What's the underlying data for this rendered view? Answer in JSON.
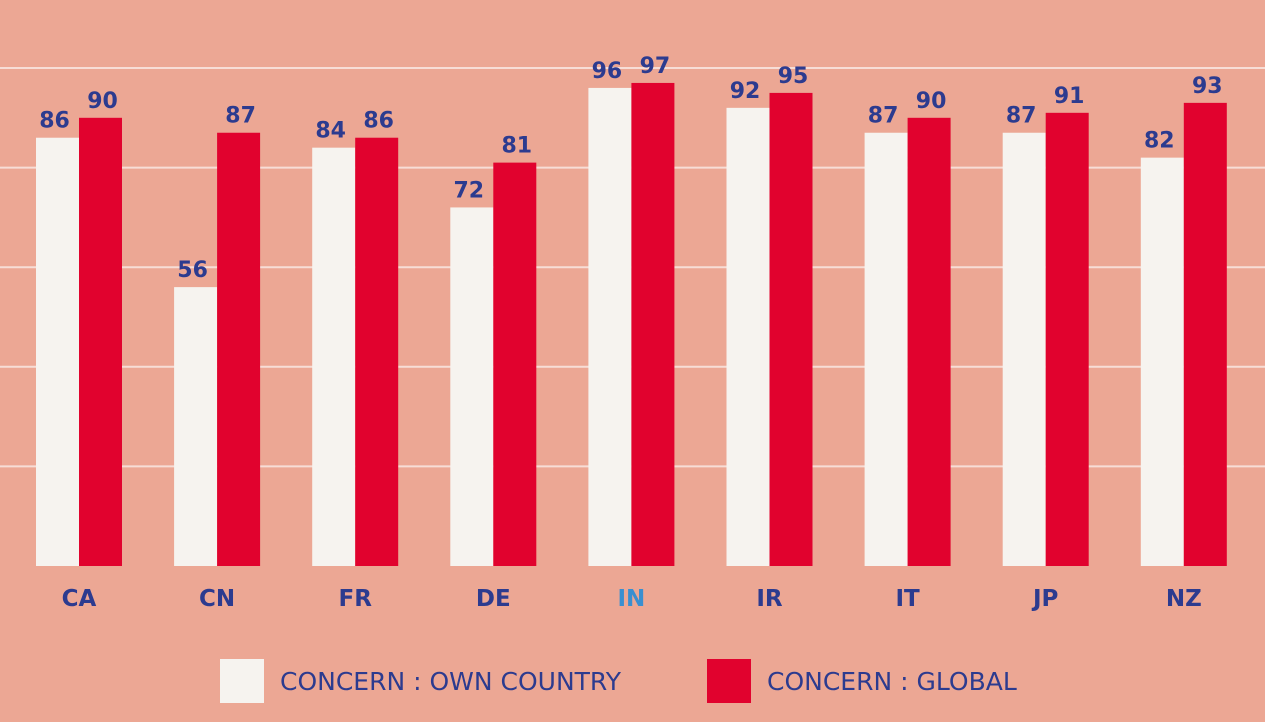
{
  "chart_data": {
    "type": "bar",
    "categories": [
      "CA",
      "CN",
      "FR",
      "DE",
      "IN",
      "IR",
      "IT",
      "JP",
      "NZ"
    ],
    "series": [
      {
        "name": "CONCERN : OWN COUNTRY",
        "values": [
          86,
          56,
          84,
          72,
          96,
          92,
          87,
          87,
          82
        ]
      },
      {
        "name": "CONCERN : GLOBAL",
        "values": [
          90,
          87,
          86,
          81,
          97,
          95,
          90,
          91,
          93
        ]
      }
    ],
    "ylim": [
      0,
      100
    ],
    "grid": true,
    "legend_position": "bottom",
    "highlight_category": "IN"
  },
  "colors": {
    "background": "#eca794",
    "own_country": "#f6f3ef",
    "global": "#e1022e",
    "text": "#2c3b8f",
    "highlight_text": "#3a8fd0",
    "grid": "#f7ddd6"
  }
}
